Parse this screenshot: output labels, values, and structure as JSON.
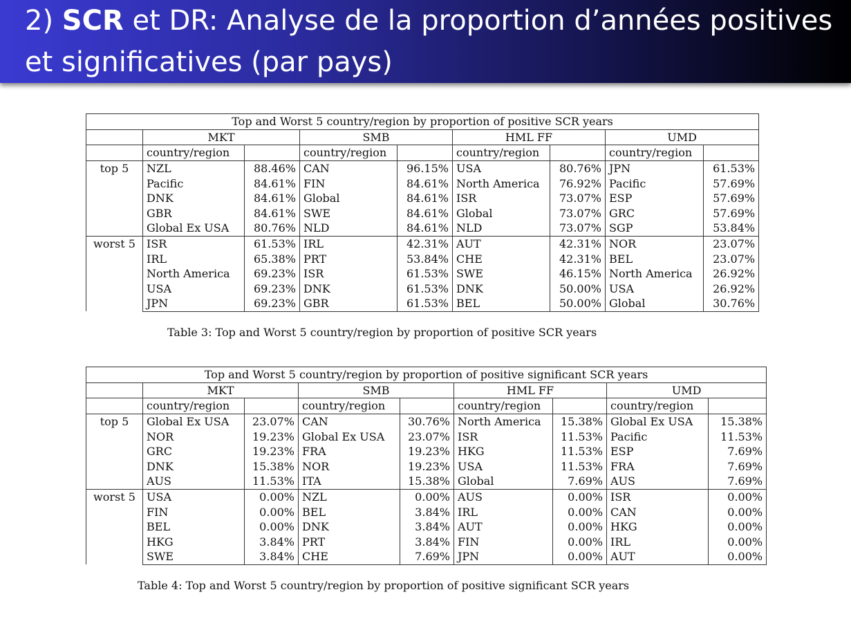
{
  "slide": {
    "title_prefix": "2) ",
    "title_bold": "SCR",
    "title_rest": " et DR: Analyse de la proportion d’années positives",
    "title_line2": "et significatives (par pays)"
  },
  "table3": {
    "header": "Top and Worst 5 country/region by proportion of positive SCR years",
    "factors": [
      "MKT",
      "SMB",
      "HML FF",
      "UMD"
    ],
    "subheader": "country/region",
    "groups": [
      {
        "label": "top 5",
        "rows": [
          [
            "NZL",
            "88.46%",
            "CAN",
            "96.15%",
            "USA",
            "80.76%",
            "JPN",
            "61.53%"
          ],
          [
            "Pacific",
            "84.61%",
            "FIN",
            "84.61%",
            "North America",
            "76.92%",
            "Pacific",
            "57.69%"
          ],
          [
            "DNK",
            "84.61%",
            "Global",
            "84.61%",
            "ISR",
            "73.07%",
            "ESP",
            "57.69%"
          ],
          [
            "GBR",
            "84.61%",
            "SWE",
            "84.61%",
            "Global",
            "73.07%",
            "GRC",
            "57.69%"
          ],
          [
            "Global Ex USA",
            "80.76%",
            "NLD",
            "84.61%",
            "NLD",
            "73.07%",
            "SGP",
            "53.84%"
          ]
        ]
      },
      {
        "label": "worst 5",
        "rows": [
          [
            "ISR",
            "61.53%",
            "IRL",
            "42.31%",
            "AUT",
            "42.31%",
            "NOR",
            "23.07%"
          ],
          [
            "IRL",
            "65.38%",
            "PRT",
            "53.84%",
            "CHE",
            "42.31%",
            "BEL",
            "23.07%"
          ],
          [
            "North America",
            "69.23%",
            "ISR",
            "61.53%",
            "SWE",
            "46.15%",
            "North America",
            "26.92%"
          ],
          [
            "USA",
            "69.23%",
            "DNK",
            "61.53%",
            "DNK",
            "50.00%",
            "USA",
            "26.92%"
          ],
          [
            "JPN",
            "69.23%",
            "GBR",
            "61.53%",
            "BEL",
            "50.00%",
            "Global",
            "30.76%"
          ]
        ]
      }
    ],
    "caption": "Table 3: Top and Worst 5 country/region by proportion of positive SCR years"
  },
  "table4": {
    "header": "Top and Worst 5 country/region by proportion of positive significant SCR years",
    "factors": [
      "MKT",
      "SMB",
      "HML FF",
      "UMD"
    ],
    "subheader": "country/region",
    "groups": [
      {
        "label": "top 5",
        "rows": [
          [
            "Global Ex USA",
            "23.07%",
            "CAN",
            "30.76%",
            "North America",
            "15.38%",
            "Global Ex USA",
            "15.38%"
          ],
          [
            "NOR",
            "19.23%",
            "Global Ex USA",
            "23.07%",
            "ISR",
            "11.53%",
            "Pacific",
            "11.53%"
          ],
          [
            "GRC",
            "19.23%",
            "FRA",
            "19.23%",
            "HKG",
            "11.53%",
            "ESP",
            "7.69%"
          ],
          [
            "DNK",
            "15.38%",
            "NOR",
            "19.23%",
            "USA",
            "11.53%",
            "FRA",
            "7.69%"
          ],
          [
            "AUS",
            "11.53%",
            "ITA",
            "15.38%",
            "Global",
            "7.69%",
            "AUS",
            "7.69%"
          ]
        ]
      },
      {
        "label": "worst 5",
        "rows": [
          [
            "USA",
            "0.00%",
            "NZL",
            "0.00%",
            "AUS",
            "0.00%",
            "ISR",
            "0.00%"
          ],
          [
            "FIN",
            "0.00%",
            "BEL",
            "3.84%",
            "IRL",
            "0.00%",
            "CAN",
            "0.00%"
          ],
          [
            "BEL",
            "0.00%",
            "DNK",
            "3.84%",
            "AUT",
            "0.00%",
            "HKG",
            "0.00%"
          ],
          [
            "HKG",
            "3.84%",
            "PRT",
            "3.84%",
            "FIN",
            "0.00%",
            "IRL",
            "0.00%"
          ],
          [
            "SWE",
            "3.84%",
            "CHE",
            "7.69%",
            "JPN",
            "0.00%",
            "AUT",
            "0.00%"
          ]
        ]
      }
    ],
    "caption": "Table 4: Top and Worst 5 country/region by proportion of positive significant SCR years"
  }
}
